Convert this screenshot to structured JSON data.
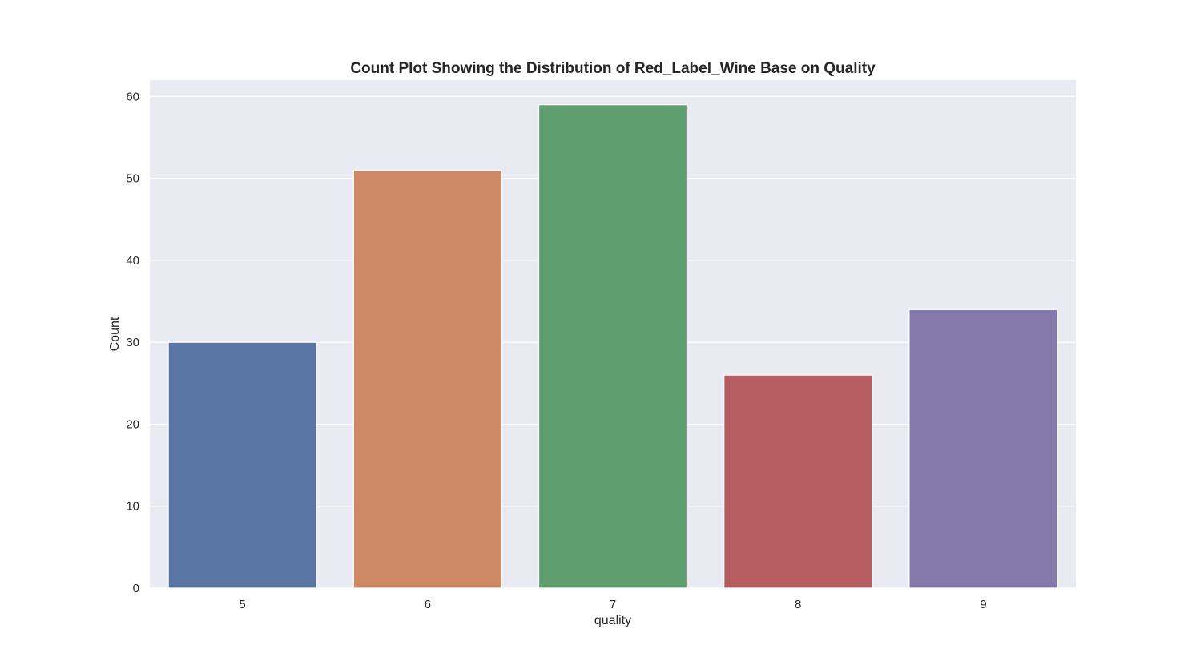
{
  "chart_data": {
    "type": "bar",
    "title": "Count Plot Showing the Distribution of Red_Label_Wine Base on Quality",
    "xlabel": "quality",
    "ylabel": "Count",
    "categories": [
      "5",
      "6",
      "7",
      "8",
      "9"
    ],
    "values": [
      30,
      51,
      59,
      26,
      34
    ],
    "ylim": [
      0,
      62
    ],
    "yticks": [
      0,
      10,
      20,
      30,
      40,
      50,
      60
    ],
    "grid": true,
    "legend": "none",
    "colors": [
      "#5875a4",
      "#cc8963",
      "#5f9e6e",
      "#b55d60",
      "#857aab"
    ],
    "background_color": "#eaeaf2",
    "grid_color": "#ffffff"
  }
}
